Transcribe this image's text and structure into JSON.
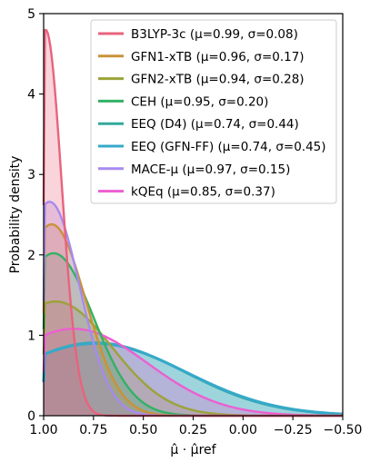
{
  "chart_data": {
    "type": "area",
    "title": "",
    "xlabel": "μ̂ · μ̂ref",
    "ylabel": "Probability density",
    "xlim": [
      1.0,
      -0.5
    ],
    "ylim": [
      0,
      5
    ],
    "x_ticks": [
      "1.00",
      "0.75",
      "0.50",
      "0.25",
      "0.00",
      "−0.25",
      "−0.50"
    ],
    "y_ticks": [
      "0",
      "1",
      "2",
      "3",
      "4",
      "5"
    ],
    "grid": false,
    "legend_position": "top-right",
    "series": [
      {
        "name": "B3LYP-3c (μ=0.99, σ=0.08)",
        "mean": 0.99,
        "sigma": 0.08,
        "color": "#e8637d",
        "max_density": 4.8
      },
      {
        "name": "GFN1-xTB (μ=0.96, σ=0.17)",
        "mean": 0.96,
        "sigma": 0.17,
        "color": "#c9923a",
        "max_density": 2.38
      },
      {
        "name": "GFN2-xTB (μ=0.94, σ=0.28)",
        "mean": 0.94,
        "sigma": 0.28,
        "color": "#9ba33a",
        "max_density": 1.42
      },
      {
        "name": "CEH (μ=0.95, σ=0.20)",
        "mean": 0.95,
        "sigma": 0.2,
        "color": "#33b164",
        "max_density": 2.02
      },
      {
        "name": "EEQ (D4) (μ=0.74, σ=0.44)",
        "mean": 0.74,
        "sigma": 0.44,
        "color": "#32a99b",
        "max_density": 0.91
      },
      {
        "name": "EEQ (GFN-FF) (μ=0.74, σ=0.45)",
        "mean": 0.74,
        "sigma": 0.45,
        "color": "#36a9c9",
        "max_density": 0.9
      },
      {
        "name": "MACE-μ (μ=0.97, σ=0.15)",
        "mean": 0.97,
        "sigma": 0.15,
        "color": "#a78af0",
        "max_density": 2.66
      },
      {
        "name": "kQEq (μ=0.85, σ=0.37)",
        "mean": 0.85,
        "sigma": 0.37,
        "color": "#ec5fd2",
        "max_density": 1.08
      }
    ]
  }
}
